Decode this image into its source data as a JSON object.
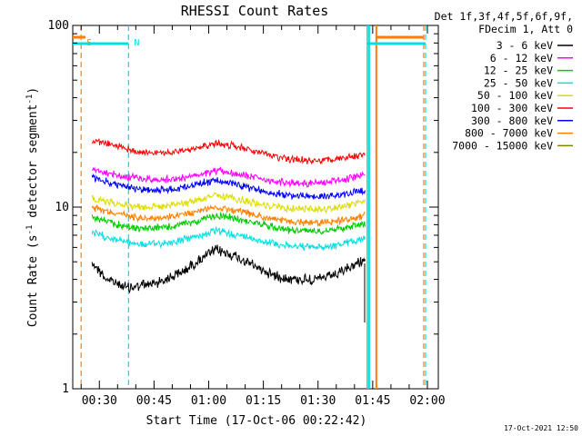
{
  "chart_data": {
    "type": "line",
    "title": "RHESSI Count Rates",
    "xlabel": "Start Time (17-Oct-06 00:22:42)",
    "ylabel_main": "Count Rate (s",
    "ylabel_sup": "-1",
    "ylabel_rest": " detector segment",
    "ylabel_sup2": "-1",
    "ylabel_end": ")",
    "y_scale": "log",
    "ylim": [
      1,
      100
    ],
    "y_ticks": [
      {
        "value": 1,
        "label": "1"
      },
      {
        "value": 10,
        "label": "10"
      },
      {
        "value": 100,
        "label": "100"
      }
    ],
    "xlim": [
      "00:22:42",
      "02:03:00"
    ],
    "x_ticks": [
      {
        "value": "00:30",
        "label": "00:30"
      },
      {
        "value": "00:45",
        "label": "00:45"
      },
      {
        "value": "01:00",
        "label": "01:00"
      },
      {
        "value": "01:15",
        "label": "01:15"
      },
      {
        "value": "01:30",
        "label": "01:30"
      },
      {
        "value": "01:45",
        "label": "01:45"
      },
      {
        "value": "02:00",
        "label": "02:00"
      }
    ],
    "legend_header": [
      "Det 1f,3f,4f,5f,6f,9f,",
      "FDecim 1, Att 0"
    ],
    "legend_position": "right",
    "series": [
      {
        "name": "3 - 6 keV",
        "color": "#000000",
        "points": [
          [
            "00:28",
            5.0
          ],
          [
            "00:32",
            4.0
          ],
          [
            "00:38",
            3.6
          ],
          [
            "00:45",
            3.8
          ],
          [
            "00:52",
            4.3
          ],
          [
            "00:58",
            5.2
          ],
          [
            "01:02",
            5.8
          ],
          [
            "01:06",
            5.5
          ],
          [
            "01:12",
            4.8
          ],
          [
            "01:18",
            4.2
          ],
          [
            "01:24",
            4.0
          ],
          [
            "01:30",
            4.0
          ],
          [
            "01:36",
            4.3
          ],
          [
            "01:40",
            4.8
          ],
          [
            "01:43",
            5.2
          ]
        ]
      },
      {
        "name": "6 - 12 keV",
        "color": "#ff00ff",
        "points": [
          [
            "00:28",
            16.0
          ],
          [
            "00:35",
            15.0
          ],
          [
            "00:42",
            14.2
          ],
          [
            "00:50",
            14.2
          ],
          [
            "00:58",
            15.0
          ],
          [
            "01:02",
            15.8
          ],
          [
            "01:08",
            15.2
          ],
          [
            "01:15",
            14.2
          ],
          [
            "01:22",
            13.6
          ],
          [
            "01:30",
            13.6
          ],
          [
            "01:36",
            14.0
          ],
          [
            "01:43",
            15.0
          ]
        ]
      },
      {
        "name": "12 - 25 keV",
        "color": "#00cc00",
        "points": [
          [
            "00:28",
            8.8
          ],
          [
            "00:35",
            8.0
          ],
          [
            "00:42",
            7.6
          ],
          [
            "00:50",
            7.8
          ],
          [
            "00:58",
            8.5
          ],
          [
            "01:02",
            9.0
          ],
          [
            "01:08",
            8.6
          ],
          [
            "01:15",
            8.0
          ],
          [
            "01:22",
            7.5
          ],
          [
            "01:30",
            7.4
          ],
          [
            "01:36",
            7.6
          ],
          [
            "01:43",
            8.2
          ]
        ]
      },
      {
        "name": "25 - 50 keV",
        "color": "#00e0e0",
        "points": [
          [
            "00:28",
            7.2
          ],
          [
            "00:35",
            6.6
          ],
          [
            "00:42",
            6.2
          ],
          [
            "00:50",
            6.4
          ],
          [
            "00:58",
            7.0
          ],
          [
            "01:02",
            7.4
          ],
          [
            "01:08",
            7.0
          ],
          [
            "01:15",
            6.5
          ],
          [
            "01:22",
            6.1
          ],
          [
            "01:30",
            6.0
          ],
          [
            "01:36",
            6.2
          ],
          [
            "01:43",
            6.8
          ]
        ]
      },
      {
        "name": "50 - 100 keV",
        "color": "#dddd00",
        "points": [
          [
            "00:28",
            11.2
          ],
          [
            "00:35",
            10.4
          ],
          [
            "00:42",
            10.0
          ],
          [
            "00:50",
            10.2
          ],
          [
            "00:58",
            11.0
          ],
          [
            "01:02",
            11.6
          ],
          [
            "01:08",
            11.0
          ],
          [
            "01:15",
            10.3
          ],
          [
            "01:22",
            9.8
          ],
          [
            "01:30",
            9.7
          ],
          [
            "01:36",
            10.0
          ],
          [
            "01:43",
            10.8
          ]
        ]
      },
      {
        "name": "100 - 300 keV",
        "color": "#ff0000",
        "points": [
          [
            "00:28",
            23.5
          ],
          [
            "00:35",
            21.5
          ],
          [
            "00:42",
            20.0
          ],
          [
            "00:50",
            19.8
          ],
          [
            "00:58",
            21.5
          ],
          [
            "01:02",
            22.5
          ],
          [
            "01:08",
            21.5
          ],
          [
            "01:15",
            19.5
          ],
          [
            "01:22",
            18.3
          ],
          [
            "01:30",
            18.0
          ],
          [
            "01:36",
            18.3
          ],
          [
            "01:43",
            19.5
          ]
        ]
      },
      {
        "name": "300 - 800 keV",
        "color": "#0000ff",
        "points": [
          [
            "00:28",
            14.5
          ],
          [
            "00:35",
            13.2
          ],
          [
            "00:42",
            12.4
          ],
          [
            "00:50",
            12.5
          ],
          [
            "00:58",
            13.5
          ],
          [
            "01:02",
            14.0
          ],
          [
            "01:08",
            13.3
          ],
          [
            "01:15",
            12.2
          ],
          [
            "01:22",
            11.6
          ],
          [
            "01:30",
            11.4
          ],
          [
            "01:36",
            11.6
          ],
          [
            "01:43",
            12.4
          ]
        ]
      },
      {
        "name": "800 - 7000 keV",
        "color": "#ff8000",
        "points": [
          [
            "00:28",
            10.0
          ],
          [
            "00:35",
            9.2
          ],
          [
            "00:42",
            8.7
          ],
          [
            "00:50",
            8.8
          ],
          [
            "00:58",
            9.6
          ],
          [
            "01:02",
            10.0
          ],
          [
            "01:08",
            9.5
          ],
          [
            "01:15",
            8.8
          ],
          [
            "01:22",
            8.3
          ],
          [
            "01:30",
            8.2
          ],
          [
            "01:36",
            8.4
          ],
          [
            "01:43",
            9.0
          ]
        ]
      },
      {
        "name": "7000 - 15000 keV",
        "color": "#808000",
        "points": []
      }
    ],
    "markers": [
      {
        "label": "S",
        "time": "00:25:00",
        "color": "#ff8000",
        "style": "dashed"
      },
      {
        "label": "N",
        "time": "00:38:00",
        "color": "#00e0e0",
        "style": "dashed"
      },
      {
        "label": "",
        "time": "01:46:00",
        "color": "#ff8000",
        "style": "solid"
      },
      {
        "label": "",
        "time": "01:44:00",
        "color": "#00e0e0",
        "style": "solid"
      },
      {
        "label": "",
        "time": "01:59:00",
        "color": "#ff8000",
        "style": "dashed"
      },
      {
        "label": "",
        "time": "01:59:30",
        "color": "#00e0e0",
        "style": "dashed"
      }
    ],
    "timestamp": "17-Oct-2021 12:50"
  }
}
